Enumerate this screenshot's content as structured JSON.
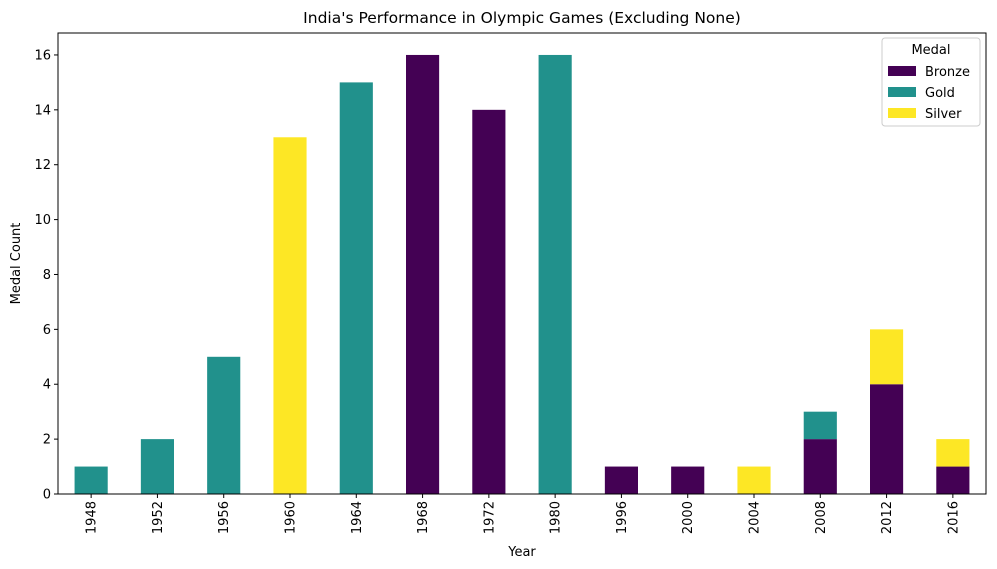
{
  "chart_data": {
    "type": "bar",
    "stacked": true,
    "title": "India's Performance in Olympic Games (Excluding None)",
    "xlabel": "Year",
    "ylabel": "Medal Count",
    "ylim": [
      0,
      16.8
    ],
    "yticks": [
      0,
      2,
      4,
      6,
      8,
      10,
      12,
      14,
      16
    ],
    "categories": [
      "1948",
      "1952",
      "1956",
      "1960",
      "1964",
      "1968",
      "1972",
      "1980",
      "1996",
      "2000",
      "2004",
      "2008",
      "2012",
      "2016"
    ],
    "series": [
      {
        "name": "Bronze",
        "color": "#440154",
        "values": [
          0,
          0,
          0,
          0,
          0,
          16,
          14,
          0,
          1,
          1,
          0,
          2,
          4,
          1
        ]
      },
      {
        "name": "Gold",
        "color": "#21918c",
        "values": [
          1,
          2,
          5,
          0,
          15,
          0,
          0,
          16,
          0,
          0,
          0,
          1,
          0,
          0
        ]
      },
      {
        "name": "Silver",
        "color": "#fde725",
        "values": [
          0,
          0,
          0,
          13,
          0,
          0,
          0,
          0,
          0,
          0,
          1,
          0,
          2,
          1
        ]
      }
    ],
    "legend": {
      "title": "Medal",
      "position": "top-right"
    },
    "grid": false
  }
}
